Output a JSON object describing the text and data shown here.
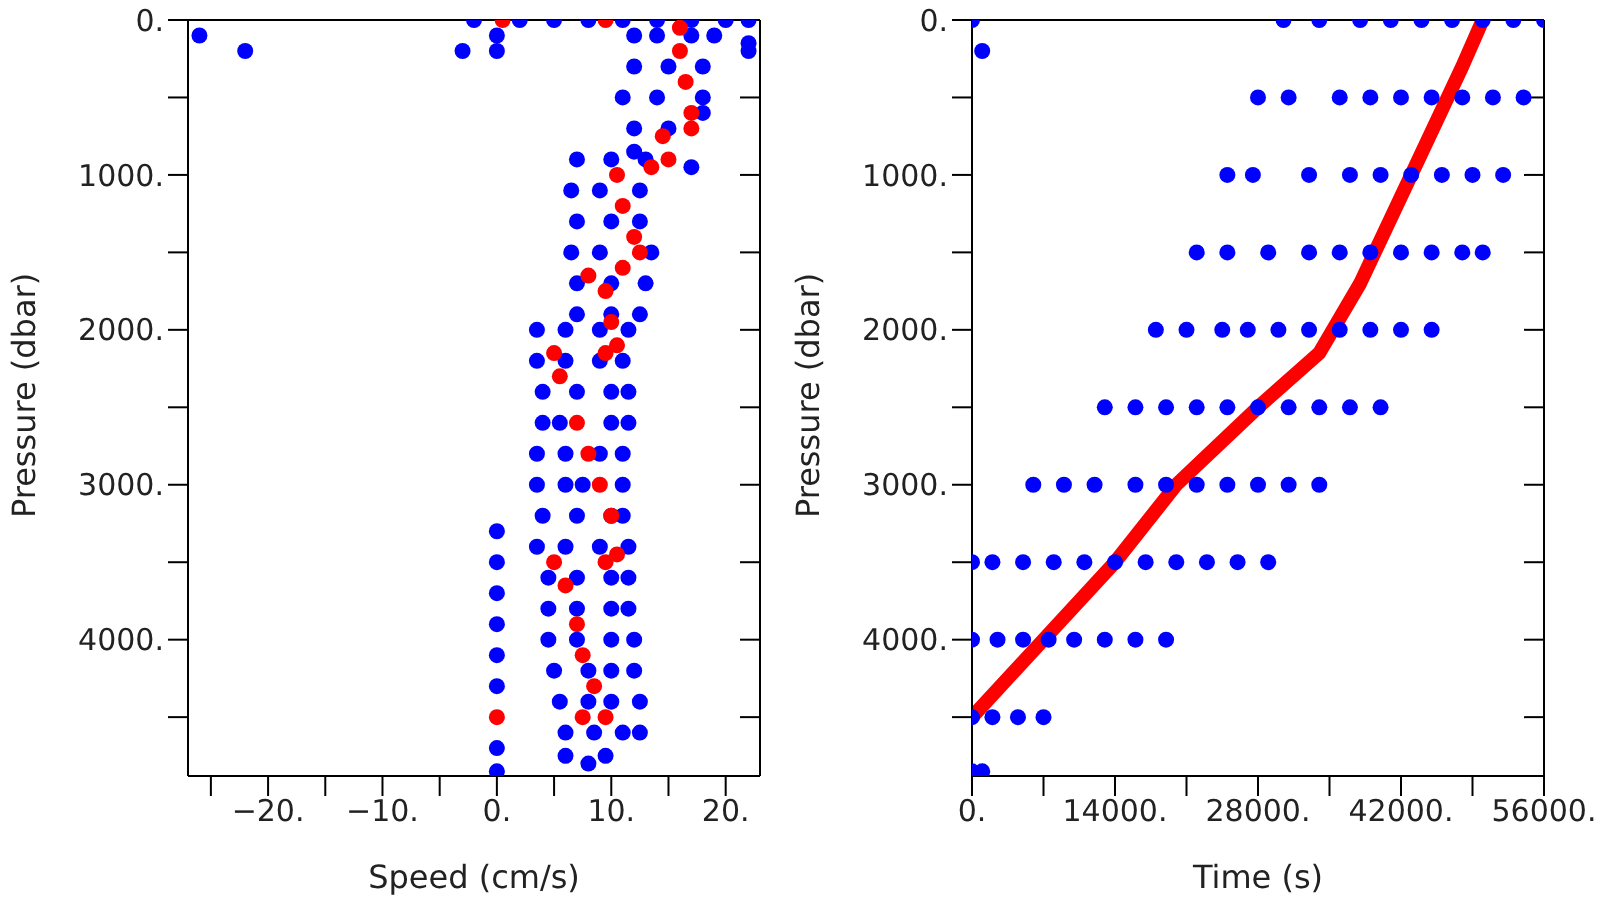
{
  "chart_data": [
    {
      "type": "scatter",
      "xlabel": "Speed (cm/s)",
      "ylabel": "Pressure (dbar)",
      "xlim": [
        -27,
        23
      ],
      "ylim": [
        4880,
        0
      ],
      "marker": "circle",
      "grid": false,
      "legend": false,
      "xticks": [
        {
          "value": -25,
          "label": null
        },
        {
          "value": -20,
          "label": "−20."
        },
        {
          "value": -15,
          "label": null
        },
        {
          "value": -10,
          "label": "−10."
        },
        {
          "value": -5,
          "label": null
        },
        {
          "value": 0,
          "label": "0."
        },
        {
          "value": 5,
          "label": null
        },
        {
          "value": 10,
          "label": "10."
        },
        {
          "value": 15,
          "label": null
        },
        {
          "value": 20,
          "label": "20."
        }
      ],
      "yticks": [
        {
          "value": 0,
          "label": "0."
        },
        {
          "value": 500,
          "label": null
        },
        {
          "value": 1000,
          "label": "1000."
        },
        {
          "value": 1500,
          "label": null
        },
        {
          "value": 2000,
          "label": "2000."
        },
        {
          "value": 2500,
          "label": null
        },
        {
          "value": 3000,
          "label": "3000."
        },
        {
          "value": 3500,
          "label": null
        },
        {
          "value": 4000,
          "label": "4000."
        },
        {
          "value": 4500,
          "label": null
        }
      ],
      "series": [
        {
          "color": "#0000ff",
          "x": [
            -2,
            2,
            5,
            8,
            11,
            14,
            17,
            20,
            22,
            -26,
            -22,
            -3,
            0,
            0,
            22,
            22,
            12,
            14,
            17,
            19,
            12,
            15,
            18,
            11,
            14,
            18,
            12,
            15,
            18,
            12,
            17,
            7,
            10,
            13,
            6.5,
            9,
            12.5,
            7,
            10,
            12.5,
            6.5,
            9,
            13.5,
            7,
            10,
            13,
            7,
            10,
            12.5,
            3.5,
            6,
            9,
            11.5,
            3.5,
            6,
            9,
            11,
            4,
            7,
            10,
            11.5,
            4,
            5.5,
            10,
            11.5,
            3.5,
            6,
            9,
            11,
            3.5,
            6,
            7.5,
            11,
            4,
            7,
            10,
            11,
            3.5,
            6,
            9,
            11.5,
            4.5,
            7,
            10,
            11.5,
            4.5,
            7,
            10,
            11.5,
            4.5,
            7,
            10,
            12,
            5,
            8,
            10,
            12,
            5.5,
            8,
            10,
            12.5,
            6,
            8.5,
            11,
            12.5,
            6,
            8,
            9.5,
            0,
            0,
            0,
            0,
            0,
            0,
            0,
            0
          ],
          "values": [
            0,
            0,
            0,
            0,
            0,
            0,
            0,
            0,
            0,
            100,
            200,
            200,
            100,
            200,
            150,
            200,
            100,
            100,
            100,
            100,
            300,
            300,
            300,
            500,
            500,
            500,
            700,
            700,
            600,
            850,
            950,
            900,
            900,
            900,
            1100,
            1100,
            1100,
            1300,
            1300,
            1300,
            1500,
            1500,
            1500,
            1700,
            1700,
            1700,
            1900,
            1900,
            1900,
            2000,
            2000,
            2000,
            2000,
            2200,
            2200,
            2200,
            2200,
            2400,
            2400,
            2400,
            2400,
            2600,
            2600,
            2600,
            2600,
            2800,
            2800,
            2800,
            2800,
            3000,
            3000,
            3000,
            3000,
            3200,
            3200,
            3200,
            3200,
            3400,
            3400,
            3400,
            3400,
            3600,
            3600,
            3600,
            3600,
            3800,
            3800,
            3800,
            3800,
            4000,
            4000,
            4000,
            4000,
            4200,
            4200,
            4200,
            4200,
            4400,
            4400,
            4400,
            4400,
            4600,
            4600,
            4600,
            4600,
            4750,
            4800,
            4750,
            3300,
            3500,
            3700,
            3900,
            4100,
            4300,
            4700,
            4850
          ]
        },
        {
          "color": "#ff0000",
          "x": [
            0.5,
            9.5,
            16,
            16,
            16.5,
            17,
            17,
            14.5,
            15,
            13.5,
            10.5,
            11,
            12,
            12.5,
            11,
            8,
            9.5,
            10,
            10.5,
            9.5,
            5,
            5.5,
            7,
            8,
            9,
            10,
            10.5,
            9.5,
            5,
            6,
            7,
            7.5,
            8.5,
            9.5,
            7.5,
            0
          ],
          "values": [
            0,
            0,
            50,
            200,
            400,
            600,
            700,
            750,
            900,
            950,
            1000,
            1200,
            1400,
            1500,
            1600,
            1650,
            1750,
            1950,
            2100,
            2150,
            2150,
            2300,
            2600,
            2800,
            3000,
            3200,
            3450,
            3500,
            3500,
            3650,
            3900,
            4100,
            4300,
            4500,
            4500,
            4500
          ]
        }
      ]
    },
    {
      "type": "scatter",
      "xlabel": "Time (s)",
      "ylabel": "Pressure (dbar)",
      "xlim": [
        0,
        56000
      ],
      "ylim": [
        4880,
        0
      ],
      "marker": "circle",
      "grid": false,
      "legend": false,
      "xticks": [
        {
          "value": 0,
          "label": "0."
        },
        {
          "value": 7000,
          "label": null
        },
        {
          "value": 14000,
          "label": "14000."
        },
        {
          "value": 21000,
          "label": null
        },
        {
          "value": 28000,
          "label": "28000."
        },
        {
          "value": 35000,
          "label": null
        },
        {
          "value": 42000,
          "label": "42000."
        },
        {
          "value": 49000,
          "label": null
        },
        {
          "value": 56000,
          "label": "56000."
        }
      ],
      "yticks": [
        {
          "value": 0,
          "label": "0."
        },
        {
          "value": 500,
          "label": null
        },
        {
          "value": 1000,
          "label": "1000."
        },
        {
          "value": 1500,
          "label": null
        },
        {
          "value": 2000,
          "label": "2000."
        },
        {
          "value": 2500,
          "label": null
        },
        {
          "value": 3000,
          "label": "3000."
        },
        {
          "value": 3500,
          "label": null
        },
        {
          "value": 4000,
          "label": "4000."
        },
        {
          "value": 4500,
          "label": null
        }
      ],
      "series": [
        {
          "color": "#0000ff",
          "x": [
            0,
            1000,
            30500,
            34000,
            38000,
            41000,
            44000,
            47000,
            50000,
            53000,
            56000,
            28000,
            31000,
            36000,
            39000,
            42000,
            45000,
            48000,
            51000,
            54000,
            25000,
            27500,
            33000,
            37000,
            40000,
            43000,
            46000,
            49000,
            52000,
            22000,
            25000,
            29000,
            33000,
            36000,
            39000,
            42000,
            45000,
            48000,
            50000,
            18000,
            21000,
            24500,
            27000,
            30000,
            33000,
            36000,
            39000,
            42000,
            45000,
            13000,
            16000,
            19000,
            22000,
            25000,
            28000,
            31000,
            34000,
            37000,
            40000,
            6000,
            9000,
            12000,
            16000,
            19000,
            22000,
            25000,
            28000,
            31000,
            34000,
            0,
            2000,
            5000,
            8000,
            11000,
            14000,
            17000,
            20000,
            23000,
            26000,
            29000,
            0,
            2500,
            5000,
            7500,
            10000,
            13000,
            16000,
            19000,
            0,
            2000,
            4500,
            7000,
            0,
            1000
          ],
          "values": [
            0,
            200,
            0,
            0,
            0,
            0,
            0,
            0,
            0,
            0,
            0,
            500,
            500,
            500,
            500,
            500,
            500,
            500,
            500,
            500,
            1000,
            1000,
            1000,
            1000,
            1000,
            1000,
            1000,
            1000,
            1000,
            1500,
            1500,
            1500,
            1500,
            1500,
            1500,
            1500,
            1500,
            1500,
            1500,
            2000,
            2000,
            2000,
            2000,
            2000,
            2000,
            2000,
            2000,
            2000,
            2000,
            2500,
            2500,
            2500,
            2500,
            2500,
            2500,
            2500,
            2500,
            2500,
            2500,
            3000,
            3000,
            3000,
            3000,
            3000,
            3000,
            3000,
            3000,
            3000,
            3000,
            3500,
            3500,
            3500,
            3500,
            3500,
            3500,
            3500,
            3500,
            3500,
            3500,
            3500,
            4000,
            4000,
            4000,
            4000,
            4000,
            4000,
            4000,
            4000,
            4500,
            4500,
            4500,
            4500,
            4850,
            4850
          ]
        },
        {
          "type": "line",
          "color": "#ff0000",
          "marker": "none",
          "x": [
            0,
            14000,
            20000,
            28000,
            34000,
            38000,
            43000,
            48000,
            50000
          ],
          "values": [
            4500,
            3500,
            3000,
            2500,
            2150,
            1700,
            1000,
            300,
            0
          ]
        }
      ]
    }
  ]
}
